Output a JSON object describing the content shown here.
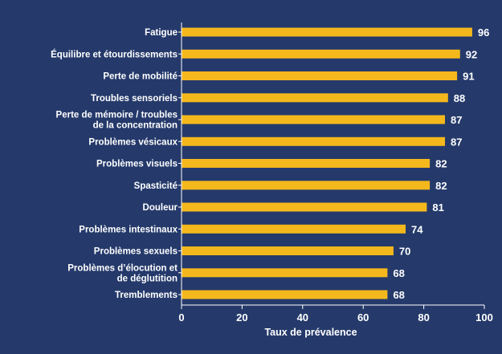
{
  "chart_data": {
    "type": "bar",
    "orientation": "horizontal",
    "categories": [
      [
        "Fatigue"
      ],
      [
        "Équilibre et étourdissements"
      ],
      [
        "Perte de mobilité"
      ],
      [
        "Troubles sensoriels"
      ],
      [
        "Perte de mémoire / troubles",
        "de la concentration"
      ],
      [
        "Problèmes vésicaux"
      ],
      [
        "Problèmes visuels"
      ],
      [
        "Spasticité"
      ],
      [
        "Douleur"
      ],
      [
        "Problèmes intestinaux"
      ],
      [
        "Problèmes sexuels"
      ],
      [
        "Problèmes d’élocution et",
        "de déglutition"
      ],
      [
        "Tremblements"
      ]
    ],
    "values": [
      96,
      92,
      91,
      88,
      87,
      87,
      82,
      82,
      81,
      74,
      70,
      68,
      68
    ],
    "xlabel": "Taux de prévalence",
    "xlim": [
      0,
      100
    ],
    "xticks": [
      0,
      20,
      40,
      60,
      80,
      100
    ],
    "grid": false,
    "colors": {
      "background": "#253a6b",
      "bar": "#f4b81c",
      "text": "#ffffff",
      "axis": "#ffffff"
    }
  }
}
